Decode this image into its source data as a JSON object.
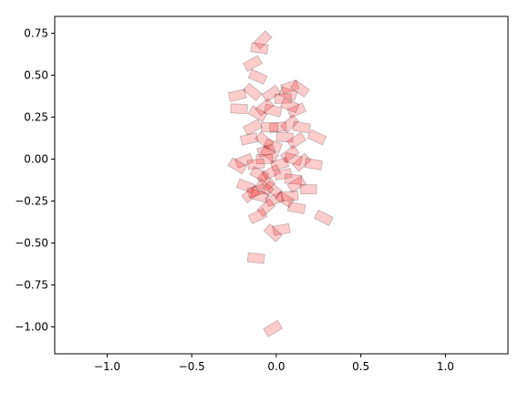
{
  "chart_data": {
    "type": "scatter",
    "x": [
      -0.08,
      -0.1,
      -0.14,
      -0.11,
      -0.23,
      -0.14,
      -0.22,
      -0.03,
      0.07,
      0.08,
      0.14,
      0.04,
      -0.07,
      -0.02,
      0.12,
      -0.11,
      0.01,
      0.08,
      0.15,
      -0.14,
      0.24,
      -0.16,
      -0.07,
      0.05,
      0.12,
      -0.02,
      -0.06,
      -0.04,
      -0.07,
      0.08,
      0.1,
      -0.19,
      -0.23,
      -0.12,
      0.15,
      0.22,
      -0.03,
      -0.1,
      0.04,
      -0.06,
      0.1,
      0.12,
      -0.18,
      -0.12,
      -0.07,
      0.19,
      -0.15,
      -0.1,
      -0.01,
      0.05,
      0.08,
      -0.06,
      0.12,
      -0.11,
      0.28,
      0.03,
      -0.02,
      -0.12,
      -0.02,
      0.08,
      0.02,
      -0.02,
      -0.04
    ],
    "y": [
      0.71,
      0.66,
      0.57,
      0.49,
      0.38,
      0.4,
      0.3,
      0.39,
      0.39,
      0.43,
      0.42,
      0.36,
      0.31,
      0.29,
      0.29,
      0.27,
      0.19,
      0.21,
      0.19,
      0.19,
      0.13,
      0.12,
      0.11,
      0.13,
      0.11,
      0.08,
      0.05,
      0.03,
      0.0,
      0.03,
      0.0,
      -0.01,
      -0.04,
      -0.03,
      -0.02,
      -0.03,
      -0.08,
      -0.09,
      -0.09,
      -0.13,
      -0.12,
      -0.15,
      -0.16,
      -0.19,
      -0.17,
      -0.18,
      -0.21,
      -0.22,
      -0.24,
      -0.24,
      -0.22,
      -0.29,
      -0.29,
      -0.34,
      -0.35,
      -0.42,
      -0.44,
      -0.59,
      -1.01,
      0.32,
      -0.03,
      -0.18,
      0.19
    ],
    "color": "#ff0000",
    "xlim": [
      -1.31,
      1.37
    ],
    "ylim": [
      -1.16,
      0.85
    ],
    "xticks": [
      {
        "value": -1.0,
        "label": "−1.0"
      },
      {
        "value": -0.5,
        "label": "−0.5"
      },
      {
        "value": 0.0,
        "label": "0.0"
      },
      {
        "value": 0.5,
        "label": "0.5"
      },
      {
        "value": 1.0,
        "label": "1.0"
      }
    ],
    "yticks": [
      {
        "value": 0.75,
        "label": "0.75"
      },
      {
        "value": 0.5,
        "label": "0.50"
      },
      {
        "value": 0.25,
        "label": "0.25"
      },
      {
        "value": 0.0,
        "label": "0.00"
      },
      {
        "value": -0.25,
        "label": "−0.25"
      },
      {
        "value": -0.5,
        "label": "−0.50"
      },
      {
        "value": -0.75,
        "label": "−0.75"
      },
      {
        "value": -1.0,
        "label": "−1.00"
      }
    ]
  }
}
